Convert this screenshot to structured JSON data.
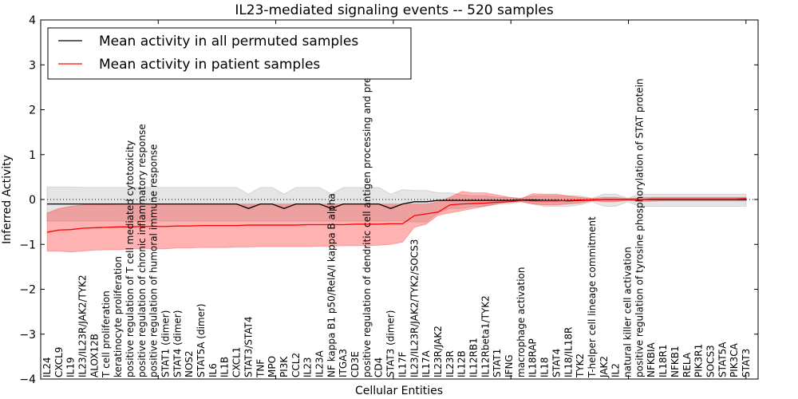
{
  "chart_data": {
    "type": "line",
    "title": "IL23-mediated signaling events -- 520 samples",
    "xlabel": "Cellular Entities",
    "ylabel": "Inferred Activity",
    "ylim": [
      -4,
      4
    ],
    "yticks": [
      4,
      3,
      2,
      1,
      0,
      -1,
      -2,
      -3,
      -4
    ],
    "ytick_labels": [
      "4",
      "3",
      "2",
      "1",
      "0",
      "−1",
      "−2",
      "−3",
      "−4"
    ],
    "grid": false,
    "reference_line": 0,
    "legend": {
      "placement": "top-left",
      "entries": [
        {
          "label": "Mean activity in all permuted samples",
          "color": "#000000"
        },
        {
          "label": "Mean activity in patient samples",
          "color": "#ff0000"
        }
      ]
    },
    "categories": [
      "IL24",
      "CXCL9",
      "IL19",
      "IL23/IL23R/JAK2/TYK2",
      "ALOX12B",
      "T cell proliferation",
      "keratinocyte proliferation",
      "positive regulation of T cell mediated cytotoxicity",
      "positive regulation of chronic inflammatory response",
      "positive regulation of humoral immune response",
      "STAT1 (dimer)",
      "STAT4 (dimer)",
      "NOS2",
      "STAT5A (dimer)",
      "IL6",
      "IL1B",
      "CXCL1",
      "STAT3/STAT4",
      "TNF",
      "MPO",
      "PI3K",
      "CCL2",
      "IL23",
      "IL23A",
      "NF kappa B1 p50/RelA/I kappa B alpha",
      "ITGA3",
      "CD3E",
      "positive regulation of dendritic cell antigen processing and presentation",
      "CD4",
      "STAT3 (dimer)",
      "IL17F",
      "IL23/IL23R/JAK2/TYK2/SOCS3",
      "IL17A",
      "IL23R/JAK2",
      "IL23R",
      "IL12B",
      "IL12RB1",
      "IL12Rbeta1/TYK2",
      "STAT1",
      "IFNG",
      "macrophage activation",
      "IL18RAP",
      "IL18",
      "STAT4",
      "IL18/IL18R",
      "TYK2",
      "T-helper cell lineage commitment",
      "JAK2",
      "IL2",
      "natural killer cell activation",
      "positive regulation of tyrosine phosphorylation of STAT protein",
      "NFKBIA",
      "IL18R1",
      "NFKB1",
      "RELA",
      "PIK3R1",
      "SOCS3",
      "STAT5A",
      "PIK3CA",
      "STAT3"
    ],
    "series": [
      {
        "name": "Mean activity in all permuted samples",
        "color": "#000000",
        "values": [
          -0.1,
          -0.1,
          -0.1,
          -0.1,
          -0.1,
          -0.1,
          -0.1,
          -0.1,
          -0.1,
          -0.1,
          -0.1,
          -0.1,
          -0.1,
          -0.1,
          -0.1,
          -0.1,
          -0.1,
          -0.2,
          -0.1,
          -0.1,
          -0.2,
          -0.1,
          -0.1,
          -0.1,
          -0.2,
          -0.1,
          -0.1,
          -0.1,
          -0.1,
          -0.2,
          -0.1,
          -0.05,
          -0.05,
          -0.02,
          -0.02,
          -0.02,
          -0.02,
          -0.02,
          -0.02,
          -0.02,
          -0.01,
          -0.01,
          -0.02,
          -0.02,
          -0.03,
          -0.02,
          -0.01,
          0,
          0,
          0,
          0,
          0,
          0,
          0,
          0,
          0,
          0,
          0,
          0,
          0
        ],
        "band_lower": [
          -0.48,
          -0.48,
          -0.48,
          -0.48,
          -0.48,
          -0.48,
          -0.48,
          -0.48,
          -0.48,
          -0.48,
          -0.48,
          -0.48,
          -0.48,
          -0.48,
          -0.48,
          -0.48,
          -0.48,
          -0.48,
          -0.48,
          -0.48,
          -0.48,
          -0.48,
          -0.48,
          -0.48,
          -0.48,
          -0.48,
          -0.48,
          -0.48,
          -0.48,
          -0.48,
          -0.48,
          -0.5,
          -0.5,
          -0.3,
          -0.2,
          -0.2,
          -0.15,
          -0.15,
          -0.1,
          -0.1,
          -0.05,
          -0.1,
          -0.15,
          -0.15,
          -0.15,
          -0.12,
          -0.05,
          -0.15,
          -0.15,
          -0.05,
          -0.15,
          -0.15,
          -0.15,
          -0.15,
          -0.15,
          -0.15,
          -0.15,
          -0.15,
          -0.15,
          -0.15
        ],
        "band_upper": [
          0.28,
          0.28,
          0.28,
          0.27,
          0.27,
          0.27,
          0.27,
          0.27,
          0.27,
          0.27,
          0.27,
          0.27,
          0.27,
          0.27,
          0.27,
          0.27,
          0.27,
          0.12,
          0.27,
          0.27,
          0.12,
          0.27,
          0.27,
          0.27,
          0.12,
          0.27,
          0.27,
          0.27,
          0.27,
          0.12,
          0.22,
          0.2,
          0.2,
          0.15,
          0.15,
          0.1,
          0.08,
          0.08,
          0.05,
          0.05,
          0.03,
          0.08,
          0.08,
          0.08,
          0.08,
          0.08,
          0.03,
          0.12,
          0.12,
          0.03,
          0.12,
          0.12,
          0.12,
          0.12,
          0.12,
          0.12,
          0.12,
          0.12,
          0.12,
          0.12
        ]
      },
      {
        "name": "Mean activity in patient samples",
        "color": "#ff0000",
        "values": [
          -0.73,
          -0.68,
          -0.67,
          -0.64,
          -0.63,
          -0.62,
          -0.61,
          -0.61,
          -0.6,
          -0.6,
          -0.6,
          -0.59,
          -0.59,
          -0.58,
          -0.58,
          -0.58,
          -0.58,
          -0.57,
          -0.57,
          -0.57,
          -0.57,
          -0.57,
          -0.56,
          -0.56,
          -0.56,
          -0.56,
          -0.55,
          -0.55,
          -0.55,
          -0.54,
          -0.54,
          -0.36,
          -0.32,
          -0.28,
          -0.12,
          -0.1,
          -0.09,
          -0.08,
          -0.06,
          -0.05,
          -0.02,
          -0.03,
          -0.03,
          -0.03,
          -0.02,
          -0.01,
          -0.01,
          0,
          0,
          0,
          0,
          0.01,
          0.01,
          0.01,
          0.01,
          0.01,
          0.01,
          0.01,
          0.01,
          0.02
        ],
        "band_lower": [
          -1.15,
          -1.15,
          -1.17,
          -1.15,
          -1.13,
          -1.12,
          -1.12,
          -1.1,
          -1.1,
          -1.1,
          -1.1,
          -1.08,
          -1.08,
          -1.07,
          -1.07,
          -1.07,
          -1.06,
          -1.06,
          -1.05,
          -1.05,
          -1.05,
          -1.05,
          -1.05,
          -1.04,
          -1.04,
          -1.03,
          -1.03,
          -1.03,
          -1.02,
          -1.0,
          -0.95,
          -0.62,
          -0.55,
          -0.35,
          -0.3,
          -0.25,
          -0.2,
          -0.15,
          -0.1,
          -0.05,
          -0.05,
          -0.1,
          -0.12,
          -0.12,
          -0.1,
          -0.08,
          -0.03,
          -0.05,
          -0.05,
          -0.02,
          -0.04,
          -0.04,
          -0.03,
          -0.03,
          -0.03,
          -0.03,
          -0.03,
          -0.03,
          -0.03,
          -0.03
        ],
        "band_upper": [
          -0.3,
          -0.2,
          -0.15,
          -0.12,
          -0.11,
          -0.11,
          -0.1,
          -0.1,
          -0.1,
          -0.1,
          -0.1,
          -0.1,
          -0.1,
          -0.1,
          -0.1,
          -0.1,
          -0.1,
          -0.1,
          -0.1,
          -0.1,
          -0.1,
          -0.1,
          -0.1,
          -0.1,
          -0.1,
          -0.1,
          -0.1,
          -0.1,
          -0.1,
          -0.1,
          -0.1,
          -0.1,
          -0.1,
          -0.05,
          0.05,
          0.18,
          0.15,
          0.15,
          0.1,
          0.05,
          0.02,
          0.13,
          0.12,
          0.12,
          0.08,
          0.05,
          0.02,
          0.05,
          0.05,
          0.02,
          0.04,
          0.05,
          0.05,
          0.05,
          0.05,
          0.05,
          0.05,
          0.05,
          0.05,
          0.05
        ]
      }
    ]
  }
}
